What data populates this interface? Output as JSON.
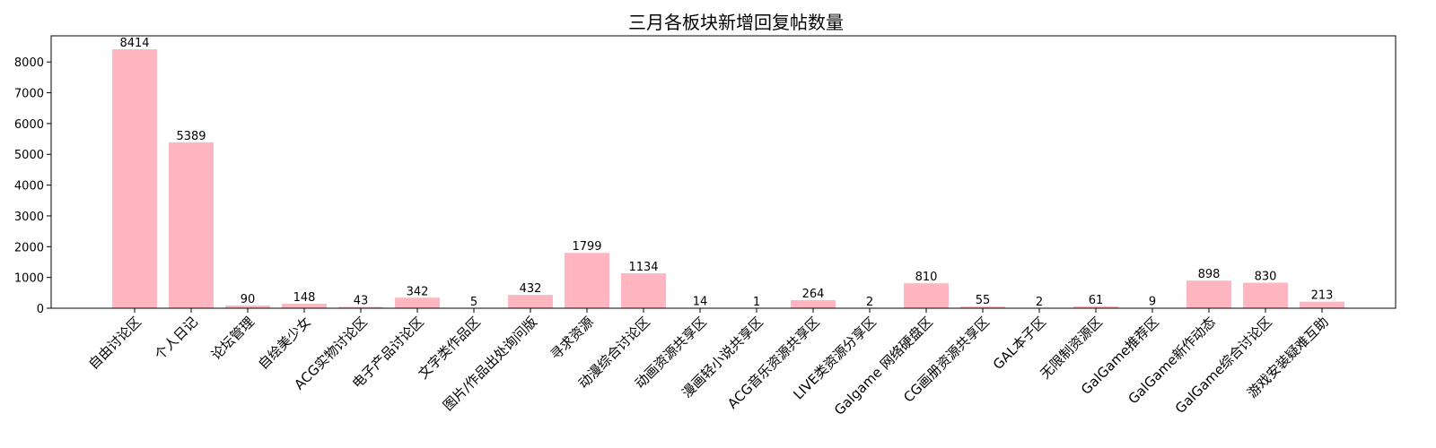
{
  "chart_data": {
    "type": "bar",
    "title": "三月各板块新增回复帖数量",
    "xlabel": "",
    "ylabel": "",
    "ylim": [
      0,
      8850
    ],
    "yticks": [
      0,
      1000,
      2000,
      3000,
      4000,
      5000,
      6000,
      7000,
      8000
    ],
    "grid": false,
    "bar_color": "#ffb6c1",
    "categories": [
      "自由讨论区",
      "个人日记",
      "论坛管理",
      "自绘美少女",
      "ACG实物讨论区",
      "电子产品讨论区",
      "文字类作品区",
      "图片/作品出处询问版",
      "寻求资源",
      "动漫综合讨论区",
      "动画资源共享区",
      "漫画轻小说共享区",
      "ACG音乐资源共享区",
      "LIVE类资源分享区",
      "Galgame 网络硬盘区",
      "CG画册资源共享区",
      "GAL本子区",
      "无限制资源区",
      "GalGame推荐区",
      "GalGame新作动态",
      "GalGame综合讨论区",
      "游戏安装疑难互助"
    ],
    "values": [
      8414,
      5389,
      90,
      148,
      43,
      342,
      5,
      432,
      1799,
      1134,
      14,
      1,
      264,
      2,
      810,
      55,
      2,
      61,
      9,
      898,
      830,
      213
    ]
  }
}
